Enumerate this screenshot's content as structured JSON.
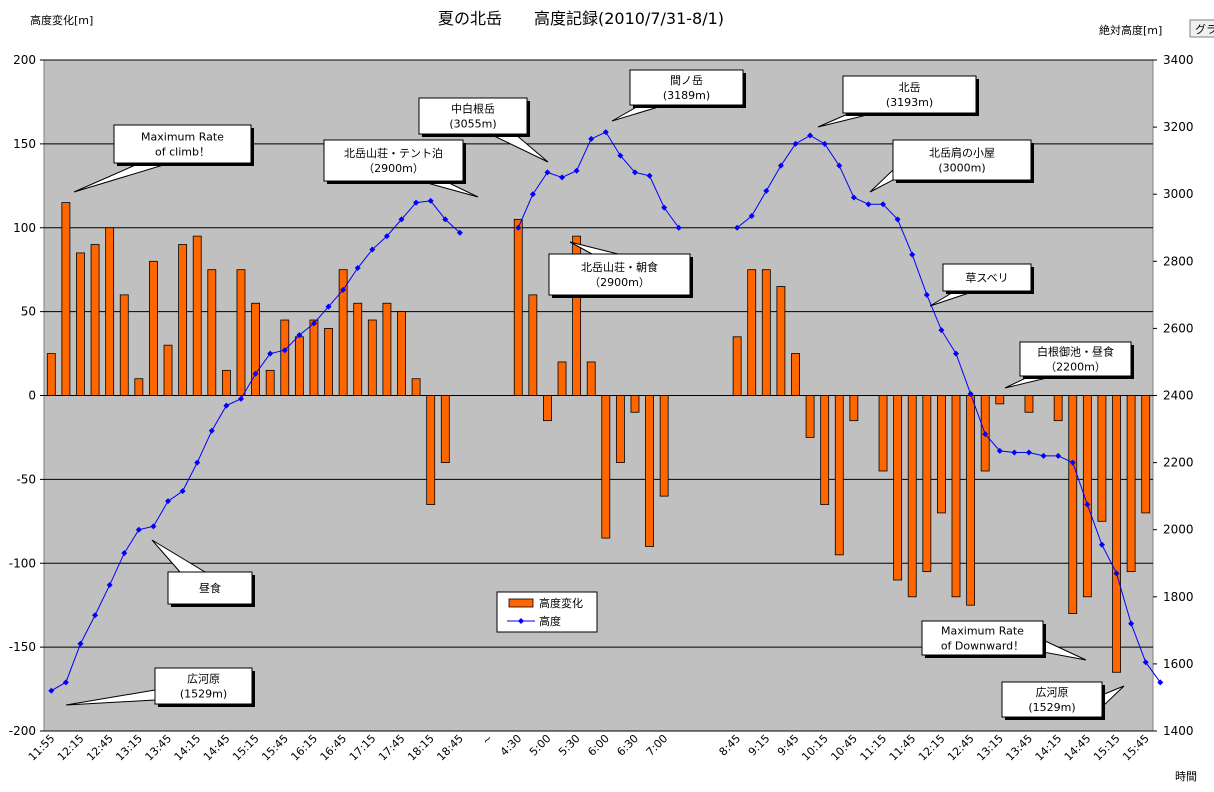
{
  "chart_data": {
    "type": "bar+line",
    "title": "夏の北岳　　高度記録(2010/7/31-8/1)",
    "ylabel_left": "高度変化[m]",
    "ylabel_right": "絶対高度[m]",
    "xlabel": "時間",
    "corner_tab": "グラ",
    "ylim_left": [
      -200,
      200
    ],
    "yticks_left": [
      200,
      150,
      100,
      50,
      0,
      -50,
      -100,
      -150,
      -200
    ],
    "ylim_right": [
      1400,
      3400
    ],
    "yticks_right": [
      3400,
      3200,
      3000,
      2800,
      2600,
      2400,
      2200,
      2000,
      1800,
      1600,
      1400
    ],
    "grid": true,
    "legend": {
      "position": "bottom-center",
      "bar_label": "高度変化",
      "line_label": "高度"
    },
    "x_tick_labels": [
      {
        "i": 0,
        "label": "11:55"
      },
      {
        "i": 2,
        "label": "12:15"
      },
      {
        "i": 4,
        "label": "12:45"
      },
      {
        "i": 6,
        "label": "13:15"
      },
      {
        "i": 8,
        "label": "13:45"
      },
      {
        "i": 10,
        "label": "14:15"
      },
      {
        "i": 12,
        "label": "14:45"
      },
      {
        "i": 14,
        "label": "15:15"
      },
      {
        "i": 16,
        "label": "15:45"
      },
      {
        "i": 18,
        "label": "16:15"
      },
      {
        "i": 20,
        "label": "16:45"
      },
      {
        "i": 22,
        "label": "17:15"
      },
      {
        "i": 24,
        "label": "17:45"
      },
      {
        "i": 26,
        "label": "18:15"
      },
      {
        "i": 28,
        "label": "18:45"
      },
      {
        "i": 30,
        "label": "~"
      },
      {
        "i": 32,
        "label": "4:30"
      },
      {
        "i": 34,
        "label": "5:00"
      },
      {
        "i": 36,
        "label": "5:30"
      },
      {
        "i": 38,
        "label": "6:00"
      },
      {
        "i": 40,
        "label": "6:30"
      },
      {
        "i": 42,
        "label": "7:00"
      },
      {
        "i": 47,
        "label": "8:45"
      },
      {
        "i": 49,
        "label": "9:15"
      },
      {
        "i": 51,
        "label": "9:45"
      },
      {
        "i": 53,
        "label": "10:15"
      },
      {
        "i": 55,
        "label": "10:45"
      },
      {
        "i": 57,
        "label": "11:15"
      },
      {
        "i": 59,
        "label": "11:45"
      },
      {
        "i": 61,
        "label": "12:15"
      },
      {
        "i": 63,
        "label": "12:45"
      },
      {
        "i": 65,
        "label": "13:15"
      },
      {
        "i": 67,
        "label": "13:45"
      },
      {
        "i": 69,
        "label": "14:15"
      },
      {
        "i": 71,
        "label": "14:45"
      },
      {
        "i": 73,
        "label": "15:15"
      },
      {
        "i": 75,
        "label": "15:45"
      }
    ],
    "category_count": 76,
    "series": [
      {
        "name": "高度変化",
        "axis": "left",
        "type": "bar",
        "color": "#FF6600",
        "values": [
          25,
          115,
          85,
          90,
          100,
          60,
          10,
          80,
          30,
          90,
          95,
          75,
          15,
          75,
          55,
          15,
          45,
          35,
          45,
          40,
          75,
          55,
          45,
          55,
          50,
          10,
          -65,
          -40,
          null,
          null,
          null,
          null,
          105,
          60,
          -15,
          20,
          95,
          20,
          -85,
          -40,
          -10,
          -90,
          -60,
          null,
          null,
          null,
          null,
          35,
          75,
          75,
          65,
          25,
          -25,
          -65,
          -95,
          -15,
          null,
          -45,
          -110,
          -120,
          -105,
          -70,
          -120,
          -125,
          -45,
          -5,
          null,
          -10,
          null,
          -15,
          -130,
          -120,
          -75,
          -165,
          -105,
          -70,
          null
        ]
      },
      {
        "name": "高度",
        "axis": "right",
        "type": "line",
        "color": "#0000FF",
        "values": [
          1520,
          1545,
          1660,
          1745,
          1835,
          1930,
          2000,
          2010,
          2085,
          2115,
          2200,
          2295,
          2370,
          2390,
          2465,
          2525,
          2535,
          2580,
          2615,
          2665,
          2715,
          2780,
          2835,
          2875,
          2925,
          2975,
          2980,
          2925,
          2885,
          null,
          null,
          null,
          2900,
          3000,
          3065,
          3050,
          3070,
          3165,
          3185,
          3115,
          3065,
          3055,
          2960,
          2900,
          null,
          null,
          null,
          2900,
          2935,
          3010,
          3085,
          3150,
          3175,
          3150,
          3085,
          2990,
          2970,
          2970,
          2925,
          2820,
          2700,
          2595,
          2525,
          2405,
          2285,
          2235,
          2230,
          2230,
          2220,
          2220,
          2200,
          2075,
          1955,
          1870,
          1720,
          1605,
          1545
        ]
      }
    ],
    "annotations": [
      {
        "lines": [
          "Maximum Rate",
          "of climb！"
        ]
      },
      {
        "lines": [
          "昼食"
        ]
      },
      {
        "lines": [
          "広河原",
          "(1529m)"
        ]
      },
      {
        "lines": [
          "北岳山荘・テント泊",
          "（2900m）"
        ]
      },
      {
        "lines": [
          "中白根岳",
          "(3055m)"
        ]
      },
      {
        "lines": [
          "間ノ岳",
          "(3189m)"
        ]
      },
      {
        "lines": [
          "北岳山荘・朝食",
          "（2900m）"
        ]
      },
      {
        "lines": [
          "北岳",
          "(3193m)"
        ]
      },
      {
        "lines": [
          "北岳肩の小屋",
          "(3000m)"
        ]
      },
      {
        "lines": [
          "草スベリ"
        ]
      },
      {
        "lines": [
          "白根御池・昼食",
          "（2200m）"
        ]
      },
      {
        "lines": [
          "Maximum Rate",
          "of Downward！"
        ]
      },
      {
        "lines": [
          "広河原",
          "(1529m)"
        ]
      }
    ]
  }
}
